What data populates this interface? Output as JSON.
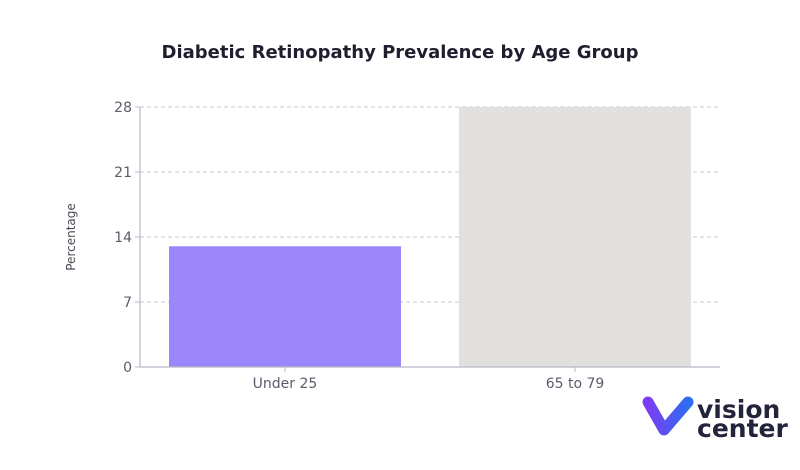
{
  "chart_data": {
    "type": "bar",
    "title": "Diabetic Retinopathy Prevalence by Age Group",
    "xlabel": "",
    "ylabel": "Percentage",
    "categories": [
      "Under 25",
      "65 to 79"
    ],
    "values": [
      13,
      28
    ],
    "bar_colors": [
      "#9b86fb",
      "#e2e0df"
    ],
    "ylim": [
      0,
      28
    ],
    "yticks": [
      0,
      7,
      14,
      21,
      28
    ],
    "grid": true,
    "legend": "none"
  },
  "logo": {
    "line1": "vision",
    "line2": "center",
    "colors": {
      "purple": "#7a3df2",
      "blue": "#2f6df0",
      "text": "#23233a"
    }
  }
}
